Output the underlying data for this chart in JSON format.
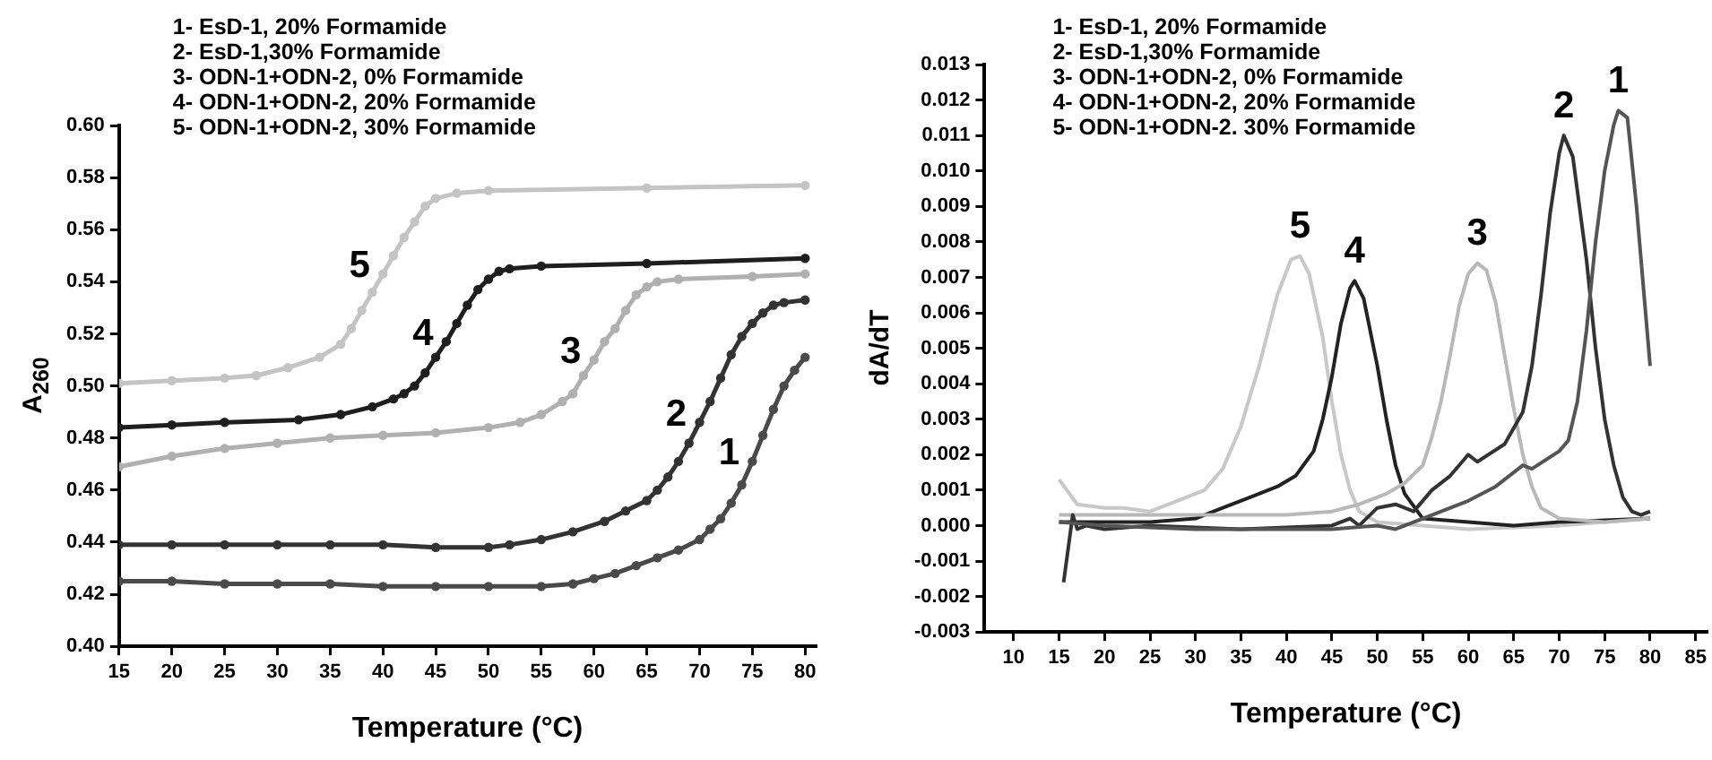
{
  "chart_data": [
    {
      "type": "line",
      "xlabel": "Temperature (°C)",
      "ylabel": "A$_{260}$",
      "xlim": [
        15,
        81
      ],
      "xticks": [
        15,
        20,
        25,
        30,
        35,
        40,
        45,
        50,
        55,
        60,
        65,
        70,
        75,
        80
      ],
      "ylim": [
        0.4,
        0.6
      ],
      "yticks": [
        {
          "value": 0.4,
          "label": "0.40"
        },
        0.42,
        0.44,
        0.46,
        0.48,
        {
          "value": 0.5,
          "label": "0.50"
        },
        0.52,
        0.54,
        0.56,
        0.58,
        {
          "value": 0.6,
          "label": "0.60"
        }
      ],
      "grid": false,
      "legend": false,
      "marker": "circle",
      "annotations": [
        "1- EsD-1, 20% Formamide",
        "2- EsD-1,30% Formamide",
        "3- ODN-1+ODN-2, 0% Formamide",
        "4- ODN-1+ODN-2, 20% Formamide",
        "5- ODN-1+ODN-2, 30% Formamide"
      ],
      "series": [
        {
          "name": "1",
          "color": "#4a4a4a",
          "x": [
            15,
            20,
            25,
            30,
            35,
            40,
            45,
            50,
            55,
            58,
            60,
            62,
            64,
            66,
            68,
            70,
            71,
            72,
            73,
            74,
            75,
            76,
            77,
            78,
            79,
            80
          ],
          "values": [
            0.425,
            0.425,
            0.424,
            0.424,
            0.424,
            0.423,
            0.423,
            0.423,
            0.423,
            0.424,
            0.426,
            0.428,
            0.431,
            0.434,
            0.437,
            0.441,
            0.445,
            0.449,
            0.455,
            0.462,
            0.471,
            0.481,
            0.491,
            0.5,
            0.506,
            0.511
          ]
        },
        {
          "name": "2",
          "color": "#333333",
          "x": [
            15,
            20,
            25,
            30,
            35,
            40,
            45,
            50,
            52,
            55,
            58,
            61,
            63,
            65,
            66,
            67,
            68,
            69,
            70,
            71,
            72,
            73,
            74,
            75,
            76,
            77,
            78,
            80
          ],
          "values": [
            0.439,
            0.439,
            0.439,
            0.439,
            0.439,
            0.439,
            0.438,
            0.438,
            0.439,
            0.441,
            0.444,
            0.448,
            0.452,
            0.456,
            0.46,
            0.465,
            0.471,
            0.478,
            0.486,
            0.494,
            0.503,
            0.512,
            0.519,
            0.524,
            0.528,
            0.531,
            0.532,
            0.533
          ]
        },
        {
          "name": "3",
          "color": "#b0b0b0",
          "x": [
            15,
            20,
            25,
            30,
            35,
            40,
            45,
            50,
            53,
            55,
            57,
            58,
            59,
            60,
            61,
            62,
            63,
            64,
            65,
            66,
            68,
            75,
            80
          ],
          "values": [
            0.469,
            0.473,
            0.476,
            0.478,
            0.48,
            0.481,
            0.482,
            0.484,
            0.486,
            0.489,
            0.494,
            0.497,
            0.504,
            0.51,
            0.517,
            0.522,
            0.529,
            0.535,
            0.538,
            0.54,
            0.541,
            0.542,
            0.543
          ]
        },
        {
          "name": "4",
          "color": "#1e1e1e",
          "x": [
            15,
            20,
            25,
            32,
            36,
            39,
            41,
            42,
            43,
            44,
            45,
            46,
            47,
            48,
            49,
            50,
            51,
            52,
            55,
            65,
            80
          ],
          "values": [
            0.484,
            0.485,
            0.486,
            0.487,
            0.489,
            0.492,
            0.495,
            0.497,
            0.5,
            0.505,
            0.511,
            0.517,
            0.524,
            0.531,
            0.537,
            0.541,
            0.544,
            0.545,
            0.546,
            0.547,
            0.549
          ]
        },
        {
          "name": "5",
          "color": "#c4c4c4",
          "x": [
            15,
            20,
            25,
            28,
            31,
            34,
            36,
            37,
            38,
            39,
            40,
            41,
            42,
            43,
            44,
            45,
            47,
            50,
            65,
            80
          ],
          "values": [
            0.501,
            0.502,
            0.503,
            0.504,
            0.507,
            0.511,
            0.516,
            0.522,
            0.529,
            0.536,
            0.543,
            0.55,
            0.557,
            0.563,
            0.569,
            0.572,
            0.574,
            0.575,
            0.576,
            0.577
          ]
        }
      ]
    },
    {
      "type": "line",
      "xlabel": "Temperature (°C)",
      "ylabel": "dA/dT",
      "xlim": [
        6.8,
        86.3
      ],
      "xticks": [
        10,
        15,
        20,
        25,
        30,
        35,
        40,
        45,
        50,
        55,
        60,
        65,
        70,
        75,
        80,
        85
      ],
      "ylim": [
        -0.003,
        0.013
      ],
      "yticks": [
        {
          "value": -0.003,
          "label": "-0.003"
        },
        {
          "value": -0.002,
          "label": "-0.002"
        },
        {
          "value": -0.001,
          "label": "-0.001"
        },
        {
          "value": 0,
          "label": "0.000"
        },
        {
          "value": 0.001,
          "label": "0.001"
        },
        {
          "value": 0.002,
          "label": "0.002"
        },
        {
          "value": 0.003,
          "label": "0.003"
        },
        {
          "value": 0.004,
          "label": "0.004"
        },
        {
          "value": 0.005,
          "label": "0.005"
        },
        {
          "value": 0.006,
          "label": "0.006"
        },
        {
          "value": 0.007,
          "label": "0.007"
        },
        {
          "value": 0.008,
          "label": "0.008"
        },
        {
          "value": 0.009,
          "label": "0.009"
        },
        {
          "value": 0.01,
          "label": "0.010"
        },
        {
          "value": 0.011,
          "label": "0.011"
        },
        {
          "value": 0.012,
          "label": "0.012"
        },
        {
          "value": 0.013,
          "label": "0.013"
        }
      ],
      "grid": false,
      "legend": false,
      "marker": "none",
      "annotations": [
        "1- EsD-1, 20% Formamide",
        "2- EsD-1,30% Formamide",
        "3- ODN-1+ODN-2, 0% Formamide",
        "4- ODN-1+ODN-2, 20% Formamide",
        "5- ODN-1+ODN-2. 30% Formamide"
      ],
      "series": [
        {
          "name": "1",
          "color": "#555555",
          "x": [
            15,
            20,
            30,
            45,
            50,
            52,
            55,
            60,
            63,
            65,
            66,
            67,
            70,
            71,
            72,
            73,
            74,
            75,
            76,
            76.5,
            77.5,
            78.5,
            79.5,
            80
          ],
          "values": [
            0.0001,
            0,
            -0.0001,
            -0.0001,
            0,
            -0.0001,
            0.0002,
            0.0007,
            0.0011,
            0.0015,
            0.0017,
            0.0016,
            0.0021,
            0.0024,
            0.0035,
            0.0055,
            0.008,
            0.01,
            0.0113,
            0.0117,
            0.0115,
            0.009,
            0.006,
            0.0045
          ]
        },
        {
          "name": "2",
          "color": "#333333",
          "x": [
            15.5,
            16.5,
            17,
            18,
            20,
            25,
            35,
            45,
            47,
            48,
            50,
            52,
            54,
            56,
            58,
            60,
            61,
            64,
            66,
            67,
            68,
            69,
            70,
            70.5,
            71.5,
            73,
            74,
            75,
            76,
            77,
            78,
            79,
            80
          ],
          "values": [
            -0.0016,
            0.0003,
            -0.0001,
            0,
            -0.0001,
            0,
            -0.0001,
            0,
            0.0002,
            0,
            0.0005,
            0.0006,
            0.0004,
            0.001,
            0.0014,
            0.002,
            0.0018,
            0.0023,
            0.0032,
            0.0045,
            0.0065,
            0.0088,
            0.0105,
            0.011,
            0.0104,
            0.0075,
            0.005,
            0.003,
            0.0017,
            0.0008,
            0.0004,
            0.0003,
            0.0004
          ]
        },
        {
          "name": "3",
          "color": "#b8b8b8",
          "x": [
            15,
            20,
            30,
            40,
            45,
            48,
            51,
            53,
            55,
            56,
            57,
            58,
            59,
            60,
            61,
            62,
            63,
            64,
            65,
            66,
            67,
            68,
            70,
            75,
            80
          ],
          "values": [
            0.0003,
            0.0003,
            0.0003,
            0.0003,
            0.0004,
            0.0006,
            0.0009,
            0.0012,
            0.0017,
            0.0025,
            0.0035,
            0.0048,
            0.0062,
            0.0071,
            0.0074,
            0.0072,
            0.0063,
            0.0048,
            0.0033,
            0.002,
            0.0011,
            0.0005,
            0.0002,
            0.0001,
            0.0002
          ]
        },
        {
          "name": "4",
          "color": "#222222",
          "x": [
            15,
            20,
            25,
            30,
            33,
            36,
            39,
            41,
            43,
            44,
            45,
            46,
            47,
            47.5,
            48.5,
            50,
            51,
            52,
            53,
            55,
            60,
            65,
            70,
            80
          ],
          "values": [
            0.0001,
            0.0001,
            0.0001,
            0.0002,
            0.0005,
            0.0008,
            0.0011,
            0.0014,
            0.0021,
            0.003,
            0.0042,
            0.0057,
            0.0067,
            0.0069,
            0.0064,
            0.0045,
            0.003,
            0.0017,
            0.0009,
            0.0002,
            0.0001,
            0,
            0.0001,
            0.0002
          ]
        },
        {
          "name": "5",
          "color": "#c8c8c8",
          "x": [
            15,
            17,
            20,
            22,
            25,
            28,
            31,
            33,
            35,
            37,
            39,
            40.5,
            41.5,
            42.5,
            44,
            45,
            46,
            47,
            48,
            50,
            55,
            60,
            70,
            80
          ],
          "values": [
            0.0013,
            0.0006,
            0.0005,
            0.0005,
            0.0004,
            0.0007,
            0.001,
            0.0016,
            0.0028,
            0.0045,
            0.0065,
            0.0075,
            0.0076,
            0.0071,
            0.0053,
            0.0035,
            0.002,
            0.001,
            0.0004,
            0.0001,
            0,
            -0.0001,
            0,
            0.0002
          ]
        }
      ]
    }
  ]
}
